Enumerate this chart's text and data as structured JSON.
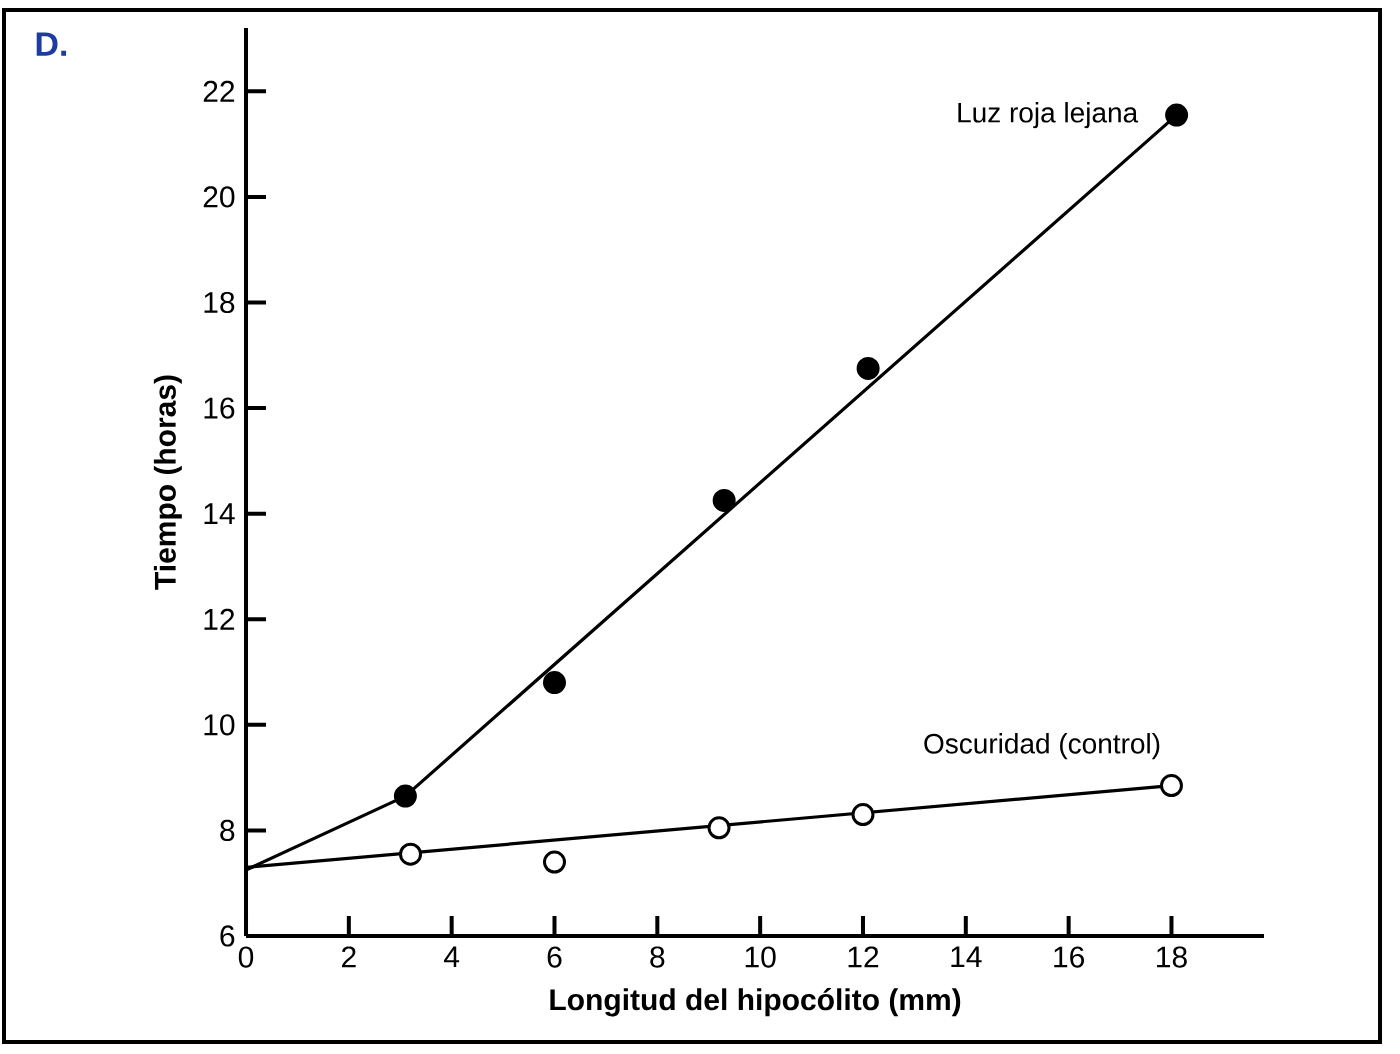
{
  "chart_data": {
    "type": "line",
    "xlabel": "Longitud del hipocólito (mm)",
    "ylabel": "Tiempo (horas)",
    "annotations": [
      "D."
    ],
    "xlim": [
      0,
      19.8
    ],
    "ylim": [
      6,
      23.2
    ],
    "xticks": [
      0,
      2,
      4,
      6,
      8,
      10,
      12,
      14,
      16,
      18
    ],
    "yticks": [
      6,
      8,
      10,
      12,
      14,
      16,
      18,
      20,
      22
    ],
    "grid": false,
    "marker": "circle",
    "series": [
      {
        "name": "Luz roja lejana",
        "type": "scatter",
        "color": "#000000",
        "x": [
          3.1,
          6,
          9.3,
          12.1,
          18.1
        ],
        "values": [
          8.65,
          10.8,
          14.25,
          16.75,
          21.55
        ]
      },
      {
        "name": "Oscuridad (control)",
        "type": "scatter",
        "color": "#ffffff",
        "x": [
          3.2,
          6,
          9.2,
          12,
          18
        ],
        "values": [
          7.55,
          7.4,
          8.05,
          8.3,
          8.85
        ]
      },
      {
        "marker": "none",
        "color": "#000000",
        "x": [
          0,
          3.1,
          18.1
        ],
        "values": [
          7.25,
          8.65,
          21.55
        ]
      },
      {
        "marker": "none",
        "color": "#000000",
        "x": [
          0,
          18
        ],
        "values": [
          7.3,
          8.85
        ]
      }
    ]
  }
}
